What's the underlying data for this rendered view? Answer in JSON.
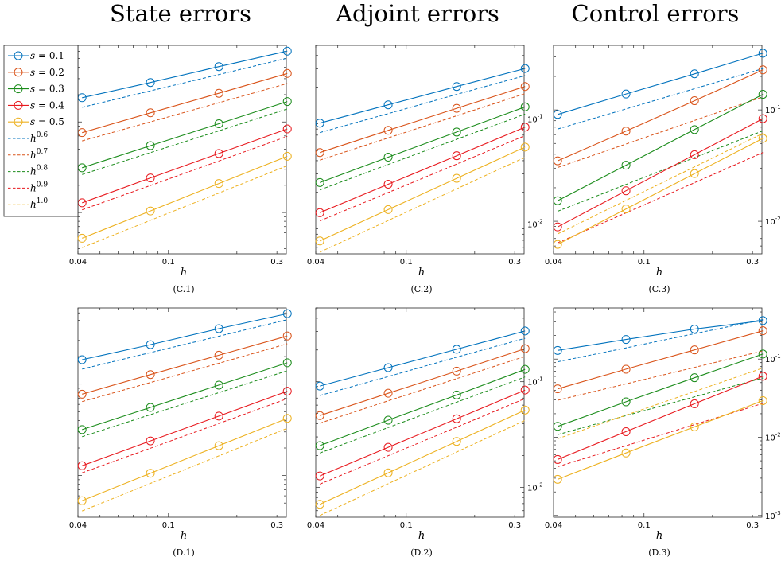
{
  "column_titles": [
    "State errors",
    "Adjoint errors",
    "Control errors"
  ],
  "legend": {
    "placement": "left",
    "items": [
      {
        "sym": "s",
        "rhs": " = 0.1",
        "color": "#0072BD",
        "style": "solid-marker"
      },
      {
        "sym": "s",
        "rhs": " = 0.2",
        "color": "#D95319",
        "style": "solid-marker"
      },
      {
        "sym": "s",
        "rhs": " = 0.3",
        "color": "#1B8C1B",
        "style": "solid-marker"
      },
      {
        "sym": "s",
        "rhs": " = 0.4",
        "color": "#E8191E",
        "style": "solid-marker"
      },
      {
        "sym": "s",
        "rhs": " = 0.5",
        "color": "#EDB120",
        "style": "solid-marker"
      },
      {
        "sym": "h",
        "exp": "0.6",
        "color": "#0072BD",
        "style": "dashed"
      },
      {
        "sym": "h",
        "exp": "0.7",
        "color": "#D95319",
        "style": "dashed"
      },
      {
        "sym": "h",
        "exp": "0.8",
        "color": "#1B8C1B",
        "style": "dashed"
      },
      {
        "sym": "h",
        "exp": "0.9",
        "color": "#E8191E",
        "style": "dashed"
      },
      {
        "sym": "h",
        "exp": "1.0",
        "color": "#EDB120",
        "style": "dashed"
      }
    ]
  },
  "chart_data": [
    {
      "type": "line",
      "caption": "(C.1)",
      "xlabel": "h",
      "xscale": "log",
      "yscale": "log",
      "xlim": [
        0.04,
        0.33
      ],
      "ylim": [
        0.0035,
        0.7
      ],
      "yaxis_side": "right",
      "xticks": [
        {
          "v": 0.04,
          "l": "0.04"
        },
        {
          "v": 0.1,
          "l": "0.1"
        },
        {
          "v": 0.3,
          "l": "0.3"
        }
      ],
      "yticks": [],
      "x": [
        0.0417,
        0.0833,
        0.1667,
        0.3333
      ],
      "series": [
        {
          "values": [
            0.185,
            0.272,
            0.408,
            0.605
          ],
          "ref": [
            0.145,
            0.22,
            0.333,
            0.505
          ]
        },
        {
          "values": [
            0.0762,
            0.126,
            0.207,
            0.343
          ],
          "ref": [
            0.0617,
            0.1,
            0.163,
            0.265
          ]
        },
        {
          "values": [
            0.0312,
            0.0547,
            0.0955,
            0.168
          ],
          "ref": [
            0.0263,
            0.0458,
            0.0797,
            0.139
          ]
        },
        {
          "values": [
            0.0128,
            0.0241,
            0.0448,
            0.0837
          ],
          "ref": [
            0.0107,
            0.0199,
            0.0371,
            0.0693
          ]
        },
        {
          "values": [
            0.0052,
            0.0104,
            0.0209,
            0.0418
          ],
          "ref": [
            0.0041,
            0.0082,
            0.0164,
            0.0329
          ]
        }
      ]
    },
    {
      "type": "line",
      "caption": "(C.2)",
      "xlabel": "h",
      "xscale": "log",
      "yscale": "log",
      "xlim": [
        0.04,
        0.33
      ],
      "ylim": [
        0.0052,
        0.5
      ],
      "yaxis_side": "right",
      "xticks": [
        {
          "v": 0.04,
          "l": "0.04"
        },
        {
          "v": 0.1,
          "l": "0.1"
        },
        {
          "v": 0.3,
          "l": "0.3"
        }
      ],
      "yticks": [
        {
          "v": 0.01,
          "base": "10",
          "exp": "-2"
        },
        {
          "v": 0.1,
          "base": "10",
          "exp": "-1"
        }
      ],
      "x": [
        0.0417,
        0.0833,
        0.1667,
        0.3333
      ],
      "series": [
        {
          "values": [
            0.0911,
            0.136,
            0.203,
            0.301
          ],
          "ref": [
            0.0741,
            0.112,
            0.171,
            0.258
          ]
        },
        {
          "values": [
            0.0478,
            0.0778,
            0.126,
            0.203
          ],
          "ref": [
            0.0405,
            0.0659,
            0.107,
            0.174
          ]
        },
        {
          "values": [
            0.0248,
            0.0432,
            0.0749,
            0.13
          ],
          "ref": [
            0.0211,
            0.0368,
            0.064,
            0.111
          ]
        },
        {
          "values": [
            0.0128,
            0.0239,
            0.0446,
            0.0834
          ],
          "ref": [
            0.0107,
            0.0199,
            0.0371,
            0.0693
          ]
        },
        {
          "values": [
            0.0069,
            0.0137,
            0.0272,
            0.0539
          ],
          "ref": [
            0.0054,
            0.0108,
            0.0216,
            0.0431
          ]
        }
      ]
    },
    {
      "type": "line",
      "caption": "(C.3)",
      "xlabel": "h",
      "xscale": "log",
      "yscale": "log",
      "xlim": [
        0.04,
        0.33
      ],
      "ylim": [
        0.0051,
        0.38
      ],
      "yaxis_side": "right",
      "xticks": [
        {
          "v": 0.04,
          "l": "0.04"
        },
        {
          "v": 0.1,
          "l": "0.1"
        },
        {
          "v": 0.3,
          "l": "0.3"
        }
      ],
      "yticks": [
        {
          "v": 0.01,
          "base": "10",
          "exp": "-2"
        },
        {
          "v": 0.1,
          "base": "10",
          "exp": "-1"
        }
      ],
      "x": [
        0.0417,
        0.0833,
        0.1667,
        0.3333
      ],
      "series": [
        {
          "values": [
            0.0911,
            0.139,
            0.211,
            0.323
          ],
          "ref": [
            0.0674,
            0.102,
            0.155,
            0.235
          ]
        },
        {
          "values": [
            0.0349,
            0.0646,
            0.121,
            0.229
          ],
          "ref": [
            0.0304,
            0.0494,
            0.0804,
            0.131
          ]
        },
        {
          "values": [
            0.0153,
            0.0319,
            0.0666,
            0.138
          ],
          "ref": [
            0.0123,
            0.0214,
            0.0373,
            0.0649
          ]
        },
        {
          "values": [
            0.0089,
            0.0188,
            0.0396,
            0.0835
          ],
          "ref": [
            0.0064,
            0.0119,
            0.0222,
            0.0414
          ]
        },
        {
          "values": [
            0.0062,
            0.0129,
            0.0268,
            0.0555
          ],
          "ref": [
            0.0077,
            0.0154,
            0.0308,
            0.0616
          ]
        }
      ]
    },
    {
      "type": "line",
      "caption": "(D.1)",
      "xlabel": "h",
      "xscale": "log",
      "yscale": "log",
      "xlim": [
        0.04,
        0.33
      ],
      "ylim": [
        0.0035,
        0.68
      ],
      "yaxis_side": "right",
      "xticks": [
        {
          "v": 0.04,
          "l": "0.04"
        },
        {
          "v": 0.1,
          "l": "0.1"
        },
        {
          "v": 0.3,
          "l": "0.3"
        }
      ],
      "yticks": [],
      "x": [
        0.0417,
        0.0833,
        0.1667,
        0.3333
      ],
      "series": [
        {
          "values": [
            0.185,
            0.27,
            0.404,
            0.59
          ],
          "ref": [
            0.146,
            0.221,
            0.334,
            0.507
          ]
        },
        {
          "values": [
            0.0776,
            0.127,
            0.207,
            0.336
          ],
          "ref": [
            0.0643,
            0.104,
            0.169,
            0.276
          ]
        },
        {
          "values": [
            0.0318,
            0.0556,
            0.0975,
            0.171
          ],
          "ref": [
            0.0266,
            0.0463,
            0.0806,
            0.14
          ]
        },
        {
          "values": [
            0.0128,
            0.0239,
            0.0447,
            0.0836
          ],
          "ref": [
            0.0107,
            0.0199,
            0.0371,
            0.0693
          ]
        },
        {
          "values": [
            0.0053,
            0.0106,
            0.0212,
            0.0422
          ],
          "ref": [
            0.0041,
            0.0082,
            0.0164,
            0.0329
          ]
        }
      ]
    },
    {
      "type": "line",
      "caption": "(D.2)",
      "xlabel": "h",
      "xscale": "log",
      "yscale": "log",
      "xlim": [
        0.04,
        0.33
      ],
      "ylim": [
        0.0052,
        0.5
      ],
      "yaxis_side": "right",
      "xticks": [
        {
          "v": 0.04,
          "l": "0.04"
        },
        {
          "v": 0.1,
          "l": "0.1"
        },
        {
          "v": 0.3,
          "l": "0.3"
        }
      ],
      "yticks": [
        {
          "v": 0.01,
          "base": "10",
          "exp": "-2"
        },
        {
          "v": 0.1,
          "base": "10",
          "exp": "-1"
        }
      ],
      "x": [
        0.0417,
        0.0833,
        0.1667,
        0.3333
      ],
      "series": [
        {
          "values": [
            0.0911,
            0.136,
            0.203,
            0.303
          ],
          "ref": [
            0.0741,
            0.112,
            0.171,
            0.258
          ]
        },
        {
          "values": [
            0.0478,
            0.0778,
            0.126,
            0.206
          ],
          "ref": [
            0.0405,
            0.0659,
            0.107,
            0.174
          ]
        },
        {
          "values": [
            0.0248,
            0.0432,
            0.0749,
            0.131
          ],
          "ref": [
            0.0211,
            0.0368,
            0.064,
            0.111
          ]
        },
        {
          "values": [
            0.0128,
            0.0239,
            0.0446,
            0.0834
          ],
          "ref": [
            0.0107,
            0.0199,
            0.0371,
            0.0693
          ]
        },
        {
          "values": [
            0.0069,
            0.0137,
            0.0272,
            0.0539
          ],
          "ref": [
            0.0054,
            0.0108,
            0.0216,
            0.0431
          ]
        }
      ]
    },
    {
      "type": "line",
      "caption": "(D.3)",
      "xlabel": "h",
      "xscale": "log",
      "yscale": "log",
      "xlim": [
        0.04,
        0.33
      ],
      "ylim": [
        0.00095,
        0.45
      ],
      "yaxis_side": "right",
      "xticks": [
        {
          "v": 0.04,
          "l": "0.04"
        },
        {
          "v": 0.1,
          "l": "0.1"
        },
        {
          "v": 0.3,
          "l": "0.3"
        }
      ],
      "yticks": [
        {
          "v": 0.001,
          "base": "10",
          "exp": "-3"
        },
        {
          "v": 0.01,
          "base": "10",
          "exp": "-2"
        },
        {
          "v": 0.1,
          "base": "10",
          "exp": "-1"
        }
      ],
      "x": [
        0.0417,
        0.0833,
        0.1667,
        0.3333
      ],
      "series": [
        {
          "values": [
            0.129,
            0.178,
            0.242,
            0.31
          ],
          "ref": [
            0.0923,
            0.139,
            0.211,
            0.32
          ]
        },
        {
          "values": [
            0.0416,
            0.0742,
            0.131,
            0.23
          ],
          "ref": [
            0.0297,
            0.0482,
            0.0783,
            0.127
          ]
        },
        {
          "values": [
            0.0138,
            0.0284,
            0.0577,
            0.116
          ],
          "ref": [
            0.0108,
            0.0189,
            0.0329,
            0.0573
          ]
        },
        {
          "values": [
            0.0052,
            0.0118,
            0.0268,
            0.0603
          ],
          "ref": [
            0.0042,
            0.0078,
            0.0145,
            0.0271
          ]
        },
        {
          "values": [
            0.0029,
            0.0063,
            0.0136,
            0.0294
          ],
          "ref": [
            0.0096,
            0.0192,
            0.0385,
            0.0769
          ]
        }
      ]
    }
  ]
}
